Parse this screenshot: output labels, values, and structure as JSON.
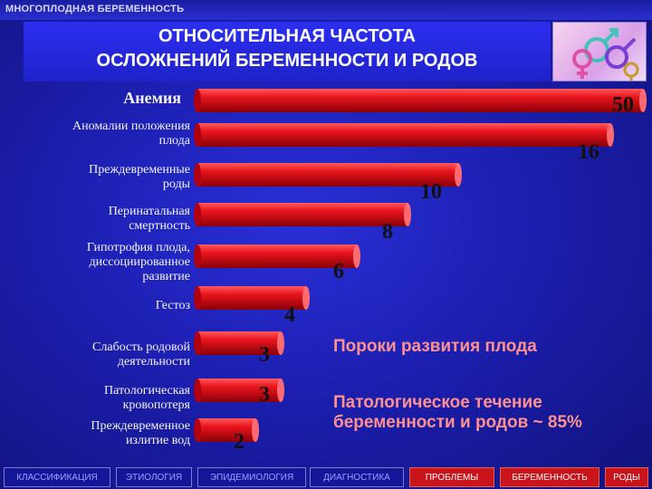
{
  "header": {
    "section_label": "МНОГОПЛОДНАЯ БЕРЕМЕННОСТЬ",
    "title_line1": "ОТНОСИТЕЛЬНАЯ ЧАСТОТА",
    "title_line2": "ОСЛОЖНЕНИЙ БЕРЕМЕННОСТИ И РОДОВ"
  },
  "chart_data": {
    "type": "bar",
    "orientation": "horizontal",
    "categories": [
      "Анемия",
      "Аномалии положения\nплода",
      "Преждевременные\nроды",
      "Перинатальная\nсмертность",
      "Гипотрофия плода,\nдиссоциированное\nразвитие",
      "Гестоз",
      "Слабость родовой\nдеятельности",
      "Патологическая\nкровопотеря",
      "Преждевременное\nизлитие вод"
    ],
    "values": [
      50,
      16,
      10,
      8,
      6,
      4,
      3,
      3,
      2
    ],
    "value_labels": [
      "50",
      "16",
      "10",
      "8",
      "6",
      "4",
      "3",
      "3",
      "2"
    ],
    "bar_color": "#e0141c",
    "annotations": [
      "Пороки развития плода",
      "Патологическое течение беременности и родов ~ 85%"
    ]
  },
  "nav": {
    "items": [
      "КЛАССИФИКАЦИЯ",
      "ЭТИОЛОГИЯ",
      "ЭПИДЕМИОЛОГИЯ",
      "ДИАГНОСТИКА",
      "ПРОБЛЕМЫ",
      "БЕРЕМЕННОСТЬ",
      "РОДЫ"
    ],
    "active": [
      "ПРОБЛЕМЫ",
      "БЕРЕМЕННОСТЬ",
      "РОДЫ"
    ]
  },
  "logo": {
    "icon": "gender-symbols-icon"
  }
}
